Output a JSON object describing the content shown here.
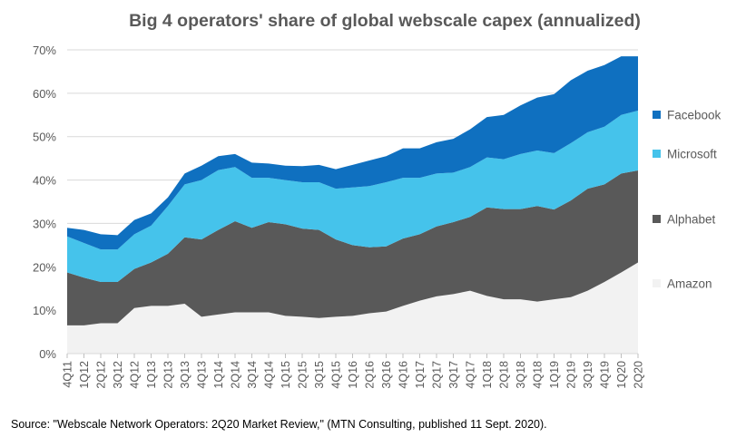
{
  "chart_data": {
    "type": "area",
    "stacked": true,
    "title": "Big 4 operators' share of global webscale capex (annualized)",
    "xlabel": "",
    "ylabel": "",
    "ylim": [
      0,
      70
    ],
    "yticks": [
      "0%",
      "10%",
      "20%",
      "30%",
      "40%",
      "50%",
      "60%",
      "70%"
    ],
    "grid": true,
    "legend_position": "right",
    "categories": [
      "4Q11",
      "1Q12",
      "2Q12",
      "3Q12",
      "4Q12",
      "1Q13",
      "2Q13",
      "3Q13",
      "4Q13",
      "1Q14",
      "2Q14",
      "3Q14",
      "4Q14",
      "1Q15",
      "2Q15",
      "3Q15",
      "4Q15",
      "1Q16",
      "2Q16",
      "3Q16",
      "4Q16",
      "1Q17",
      "2Q17",
      "3Q17",
      "4Q17",
      "1Q18",
      "2Q18",
      "3Q18",
      "4Q18",
      "1Q19",
      "2Q19",
      "3Q19",
      "4Q19",
      "1Q20",
      "2Q20"
    ],
    "series": [
      {
        "name": "Amazon",
        "color": "#f2f2f2",
        "values": [
          6.5,
          6.5,
          7.0,
          7.0,
          10.5,
          11.0,
          11.0,
          11.5,
          8.5,
          9.0,
          9.5,
          9.5,
          9.5,
          8.7,
          8.5,
          8.2,
          8.5,
          8.7,
          9.3,
          9.7,
          11.0,
          12.2,
          13.2,
          13.7,
          14.5,
          13.3,
          12.5,
          12.5,
          12.0,
          12.5,
          13.0,
          14.5,
          16.5,
          18.7,
          21.0
        ]
      },
      {
        "name": "Alphabet",
        "color": "#595959",
        "values": [
          12.2,
          11.0,
          9.5,
          9.5,
          9.0,
          10.0,
          12.0,
          15.3,
          17.8,
          19.5,
          21.0,
          19.5,
          20.8,
          21.1,
          20.3,
          20.3,
          17.8,
          16.3,
          15.2,
          15.0,
          15.5,
          15.3,
          16.1,
          16.6,
          17.0,
          20.4,
          20.8,
          20.8,
          22.0,
          20.7,
          22.3,
          23.5,
          22.5,
          22.8,
          21.2
        ]
      },
      {
        "name": "Microsoft",
        "color": "#45c3eb",
        "values": [
          8.3,
          8.0,
          7.5,
          7.5,
          8.0,
          8.5,
          11.0,
          12.2,
          13.7,
          13.8,
          12.5,
          11.5,
          10.2,
          10.2,
          10.7,
          11.0,
          11.7,
          13.3,
          14.1,
          14.8,
          14.0,
          13.0,
          12.2,
          11.4,
          11.5,
          11.5,
          11.5,
          12.7,
          12.8,
          13.0,
          13.2,
          13.0,
          13.3,
          13.5,
          13.8
        ]
      },
      {
        "name": "Facebook",
        "color": "#0f70c0",
        "values": [
          2.0,
          3.0,
          3.5,
          3.3,
          3.3,
          2.8,
          2.0,
          2.5,
          3.3,
          3.2,
          3.0,
          3.5,
          3.3,
          3.3,
          3.7,
          4.0,
          4.5,
          5.2,
          5.9,
          6.0,
          6.8,
          6.8,
          7.2,
          7.8,
          8.7,
          9.3,
          10.2,
          11.2,
          12.2,
          13.6,
          14.5,
          14.2,
          14.2,
          13.5,
          12.5
        ]
      }
    ]
  },
  "source": "Source: \"Webscale Network Operators: 2Q20 Market Review,\" (MTN Consulting, published 11 Sept. 2020)."
}
